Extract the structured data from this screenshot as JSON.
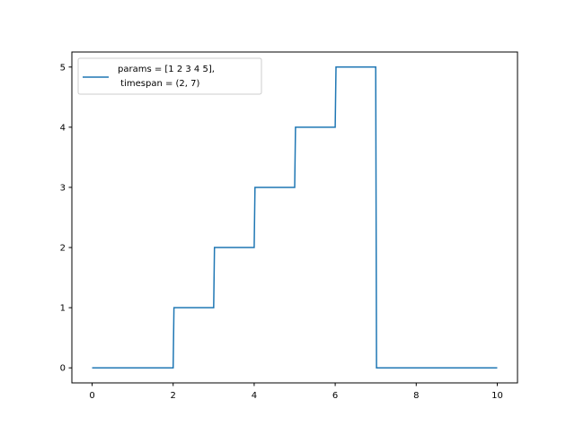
{
  "chart_data": {
    "type": "line",
    "title": "",
    "xlabel": "",
    "ylabel": "",
    "xlim": [
      -0.5,
      10.5
    ],
    "ylim": [
      -0.25,
      5.25
    ],
    "xticks": [
      0,
      2,
      4,
      6,
      8,
      10
    ],
    "yticks": [
      0,
      1,
      2,
      3,
      4,
      5
    ],
    "grid": false,
    "legend_position": "top-left",
    "series": [
      {
        "name": "params = [1 2 3 4 5],\n timespan = (2, 7)",
        "name_lines": [
          "params = [1 2 3 4 5],",
          " timespan = (2, 7)"
        ],
        "color": "#1f77b4",
        "x": [
          0,
          2,
          2.02,
          3,
          3.02,
          4,
          4.02,
          5,
          5.02,
          6,
          6.02,
          7,
          7.02,
          10
        ],
        "y": [
          0,
          0,
          1,
          1,
          2,
          2,
          3,
          3,
          4,
          4,
          5,
          5,
          0,
          0
        ]
      }
    ]
  }
}
